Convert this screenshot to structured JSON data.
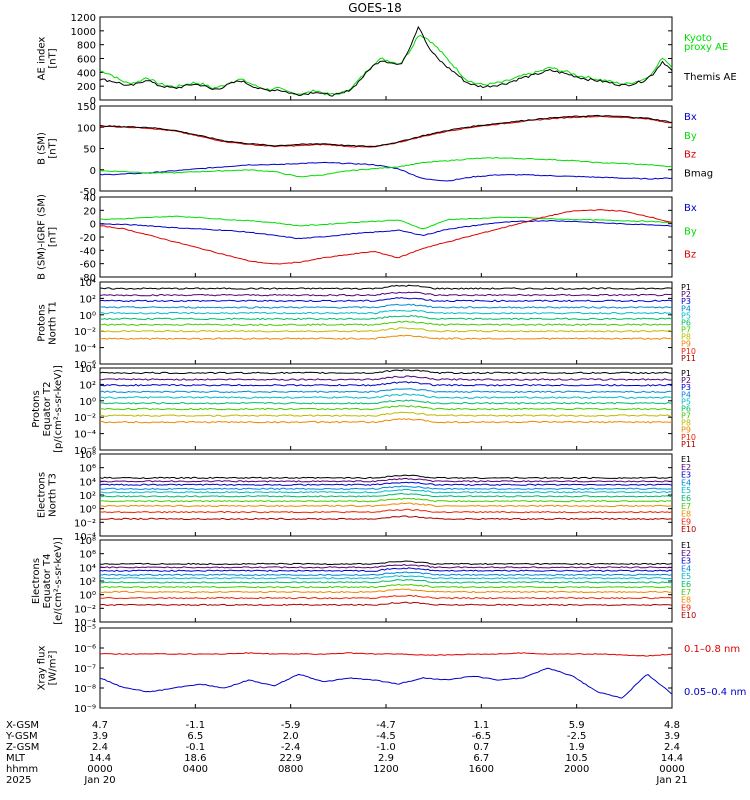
{
  "title": "GOES-18",
  "colors": {
    "black": "#000000",
    "green": "#00dd00",
    "blue": "#0000cc",
    "red": "#dd0000",
    "lblue": "#00aaff"
  },
  "chart_data": [
    {
      "id": "ae",
      "type": "line",
      "ylabel": [
        "AE index",
        "[nT]"
      ],
      "yticks": [
        "1200",
        "1000",
        "800",
        "600",
        "400",
        "200",
        "0"
      ],
      "ylim": [
        0,
        1200
      ],
      "legend": [
        {
          "label": "Kyoto",
          "color": "#00dd00"
        },
        {
          "label": "proxy AE",
          "color": "#00dd00"
        },
        {
          "label": "Themis AE",
          "color": "#000000"
        }
      ],
      "series": [
        {
          "name": "Kyoto proxy AE",
          "color": "#00dd00",
          "values": [
            420,
            380,
            300,
            240,
            260,
            330,
            250,
            210,
            190,
            220,
            250,
            230,
            170,
            200,
            260,
            300,
            240,
            180,
            150,
            170,
            120,
            90,
            100,
            140,
            90,
            80,
            110,
            200,
            350,
            500,
            600,
            560,
            520,
            700,
            950,
            880,
            750,
            600,
            450,
            300,
            240,
            220,
            240,
            260,
            300,
            350,
            380,
            420,
            470,
            430,
            400,
            350,
            330,
            300,
            280,
            250,
            230,
            260,
            300,
            400,
            620,
            480
          ]
        },
        {
          "name": "Themis AE",
          "color": "#000000",
          "values": [
            300,
            280,
            250,
            200,
            230,
            300,
            220,
            190,
            170,
            200,
            230,
            210,
            150,
            180,
            240,
            280,
            220,
            160,
            140,
            150,
            110,
            80,
            90,
            120,
            80,
            70,
            100,
            180,
            330,
            480,
            580,
            540,
            500,
            750,
            1080,
            760,
            600,
            480,
            380,
            260,
            210,
            190,
            210,
            230,
            270,
            320,
            350,
            390,
            430,
            400,
            370,
            330,
            300,
            280,
            260,
            230,
            210,
            240,
            280,
            380,
            560,
            420
          ]
        }
      ]
    },
    {
      "id": "bsm",
      "type": "line",
      "ylabel": [
        "B (SM)",
        "[nT]"
      ],
      "yticks": [
        "150",
        "100",
        "50",
        "0",
        "-50"
      ],
      "ylim": [
        -60,
        150
      ],
      "legend": [
        {
          "label": "Bx",
          "color": "#0000cc"
        },
        {
          "label": "By",
          "color": "#00dd00"
        },
        {
          "label": "Bz",
          "color": "#dd0000"
        },
        {
          "label": "Bmag",
          "color": "#000000"
        }
      ],
      "series": [
        {
          "name": "Bx",
          "color": "#0000cc",
          "values": [
            -20,
            -18,
            -15,
            -10,
            -5,
            0,
            5,
            5,
            8,
            10,
            8,
            5,
            -5,
            -30,
            -35,
            -25,
            -20,
            -20,
            -22,
            -24,
            -26,
            -28,
            -30,
            -28
          ]
        },
        {
          "name": "By",
          "color": "#00dd00",
          "values": [
            -10,
            -12,
            -15,
            -15,
            -12,
            -10,
            -8,
            -12,
            -25,
            -20,
            -10,
            -5,
            0,
            10,
            15,
            20,
            22,
            20,
            18,
            15,
            10,
            8,
            5,
            0
          ]
        },
        {
          "name": "Bz",
          "color": "#dd0000",
          "values": [
            100,
            98,
            95,
            88,
            75,
            62,
            55,
            50,
            52,
            55,
            50,
            48,
            60,
            75,
            88,
            98,
            105,
            112,
            118,
            122,
            124,
            122,
            118,
            108
          ]
        },
        {
          "name": "Bmag",
          "color": "#000000",
          "values": [
            101,
            99,
            97,
            90,
            77,
            64,
            57,
            52,
            55,
            57,
            52,
            50,
            61,
            77,
            90,
            100,
            107,
            114,
            120,
            124,
            126,
            124,
            120,
            110
          ]
        }
      ]
    },
    {
      "id": "bdiff",
      "type": "line",
      "ylabel": [
        "B (SM)-IGRF (SM)",
        "[nT]"
      ],
      "yticks": [
        "40",
        "20",
        "0",
        "-20",
        "-40",
        "-60",
        "-80"
      ],
      "ylim": [
        -85,
        40
      ],
      "legend": [
        {
          "label": "Bx",
          "color": "#0000cc"
        },
        {
          "label": "By",
          "color": "#00dd00"
        },
        {
          "label": "Bz",
          "color": "#dd0000"
        }
      ],
      "series": [
        {
          "name": "Bx",
          "color": "#0000cc",
          "values": [
            -2,
            -3,
            -5,
            -8,
            -10,
            -12,
            -15,
            -20,
            -25,
            -22,
            -18,
            -15,
            -12,
            -20,
            -10,
            -5,
            0,
            2,
            3,
            2,
            0,
            -2,
            -3,
            -5
          ]
        },
        {
          "name": "By",
          "color": "#00dd00",
          "values": [
            5,
            6,
            8,
            10,
            8,
            5,
            3,
            0,
            -5,
            -3,
            0,
            2,
            4,
            -10,
            5,
            6,
            8,
            8,
            6,
            5,
            4,
            3,
            2,
            0
          ]
        },
        {
          "name": "Bz",
          "color": "#dd0000",
          "values": [
            -5,
            -10,
            -20,
            -30,
            -40,
            -50,
            -60,
            -65,
            -62,
            -55,
            -50,
            -45,
            -55,
            -40,
            -30,
            -20,
            -10,
            0,
            10,
            18,
            20,
            18,
            10,
            0
          ]
        }
      ]
    },
    {
      "id": "p1",
      "type": "line",
      "log": true,
      "ylabel": [
        "Protons",
        "North T1"
      ],
      "yticks": [
        "10⁴",
        "10²",
        "10⁰",
        "10⁻²",
        "10⁻⁴",
        "10⁻⁶"
      ],
      "ylim": [
        -6,
        4
      ],
      "channels": [
        "P1",
        "P2",
        "P3",
        "P4",
        "P5",
        "P6",
        "P7",
        "P8",
        "P9",
        "P10",
        "P11"
      ],
      "channel_colors": [
        "#000000",
        "#550077",
        "#0000cc",
        "#0088dd",
        "#00bbcc",
        "#00bb66",
        "#44cc00",
        "#bbbb00",
        "#ee8800",
        "#ee2200",
        "#aa0000"
      ],
      "levels": [
        3.2,
        2.4,
        1.7,
        0.9,
        0.2,
        -0.5,
        -1.2,
        -2.0,
        -2.9,
        -6,
        -6
      ]
    },
    {
      "id": "p2",
      "type": "line",
      "log": true,
      "ylabel": [
        "Protons",
        "Equator T2",
        "[p/(cm²-s-sr-keV)]"
      ],
      "yticks": [
        "10⁴",
        "10²",
        "10⁰",
        "10⁻²",
        "10⁻⁴",
        "10⁻⁶"
      ],
      "ylim": [
        -6,
        4
      ],
      "channels": [
        "P1",
        "P2",
        "P3",
        "P4",
        "P5",
        "P6",
        "P7",
        "P8",
        "P9",
        "P10",
        "P11"
      ],
      "channel_colors": [
        "#000000",
        "#550077",
        "#0000cc",
        "#0088dd",
        "#00bbcc",
        "#00bb66",
        "#44cc00",
        "#bbbb00",
        "#ee8800",
        "#ee2200",
        "#aa0000"
      ],
      "levels": [
        3.4,
        2.6,
        1.9,
        1.1,
        0.4,
        -0.3,
        -1.0,
        -1.8,
        -2.6,
        -6,
        -6
      ]
    },
    {
      "id": "e3",
      "type": "line",
      "log": true,
      "ylabel": [
        "Electrons",
        "North T3"
      ],
      "yticks": [
        "10⁸",
        "10⁶",
        "10⁴",
        "10²",
        "10⁰",
        "10⁻²",
        "10⁻⁴"
      ],
      "ylim": [
        -4,
        8
      ],
      "channels": [
        "E1",
        "E2",
        "E3",
        "E4",
        "E5",
        "E6",
        "E7",
        "E8",
        "E9",
        "E10"
      ],
      "channel_colors": [
        "#000000",
        "#550077",
        "#0000cc",
        "#0088dd",
        "#00bbcc",
        "#00bb66",
        "#44cc00",
        "#ee8800",
        "#ee2200",
        "#aa0000"
      ],
      "levels": [
        4.5,
        4.0,
        3.5,
        2.9,
        2.4,
        1.8,
        1.1,
        0.4,
        -0.5,
        -1.5
      ]
    },
    {
      "id": "e4",
      "type": "line",
      "log": true,
      "ylabel": [
        "Electrons",
        "Equator T4",
        "[e/(cm²-s-sr-keV)]"
      ],
      "yticks": [
        "10⁸",
        "10⁶",
        "10⁴",
        "10²",
        "10⁰",
        "10⁻²",
        "10⁻⁴"
      ],
      "ylim": [
        -4,
        8
      ],
      "channels": [
        "E1",
        "E2",
        "E3",
        "E4",
        "E5",
        "E6",
        "E7",
        "E8",
        "E9",
        "E10"
      ],
      "channel_colors": [
        "#000000",
        "#550077",
        "#0000cc",
        "#0088dd",
        "#00bbcc",
        "#00bb66",
        "#44cc00",
        "#ee8800",
        "#ee2200",
        "#aa0000"
      ],
      "levels": [
        4.5,
        4.0,
        3.5,
        2.9,
        2.4,
        1.8,
        1.1,
        0.4,
        -0.5,
        -1.5
      ]
    },
    {
      "id": "xray",
      "type": "line",
      "log": true,
      "ylabel": [
        "Xray flux",
        "[W/m²]"
      ],
      "yticks": [
        "10⁻⁵",
        "10⁻⁶",
        "10⁻⁷",
        "10⁻⁸",
        "10⁻⁹"
      ],
      "ylim": [
        -9,
        -5
      ],
      "legend": [
        {
          "label": "0.1–0.8 nm",
          "color": "#dd0000"
        },
        {
          "label": "0.05–0.4 nm",
          "color": "#0000cc"
        }
      ],
      "series": [
        {
          "name": "0.1–0.8 nm",
          "color": "#dd0000",
          "values": [
            -6.3,
            -6.3,
            -6.3,
            -6.3,
            -6.3,
            -6.3,
            -6.25,
            -6.3,
            -6.3,
            -6.3,
            -6.25,
            -6.3,
            -6.3,
            -6.35,
            -6.35,
            -6.3,
            -6.3,
            -6.25,
            -6.3,
            -6.3,
            -6.3,
            -6.35,
            -6.4,
            -6.3
          ]
        },
        {
          "name": "0.05–0.4 nm",
          "color": "#0000cc",
          "values": [
            -7.5,
            -8.0,
            -8.2,
            -8.0,
            -7.8,
            -8.0,
            -7.6,
            -7.9,
            -7.3,
            -7.7,
            -7.5,
            -7.6,
            -7.8,
            -7.5,
            -7.6,
            -7.4,
            -7.6,
            -7.5,
            -7.0,
            -7.4,
            -8.2,
            -8.5,
            -7.3,
            -8.3
          ]
        }
      ]
    }
  ],
  "x_axis": {
    "row_labels": [
      "X-GSM",
      "Y-GSM",
      "Z-GSM",
      "MLT",
      "hhmm",
      "2025"
    ],
    "ticks": [
      {
        "values": [
          "4.7",
          "3.9",
          "2.4",
          "14.4",
          "0000",
          "Jan 20"
        ]
      },
      {
        "values": [
          "-1.1",
          "6.5",
          "-0.1",
          "18.6",
          "0400",
          ""
        ]
      },
      {
        "values": [
          "-5.9",
          "2.0",
          "-2.4",
          "22.9",
          "0800",
          ""
        ]
      },
      {
        "values": [
          "-4.7",
          "-4.5",
          "-1.0",
          "2.9",
          "1200",
          ""
        ]
      },
      {
        "values": [
          "1.1",
          "-6.5",
          "0.7",
          "6.7",
          "1600",
          ""
        ]
      },
      {
        "values": [
          "5.9",
          "-2.5",
          "1.9",
          "10.5",
          "2000",
          ""
        ]
      },
      {
        "values": [
          "4.8",
          "3.9",
          "2.4",
          "14.4",
          "0000",
          "Jan 21"
        ]
      }
    ]
  }
}
